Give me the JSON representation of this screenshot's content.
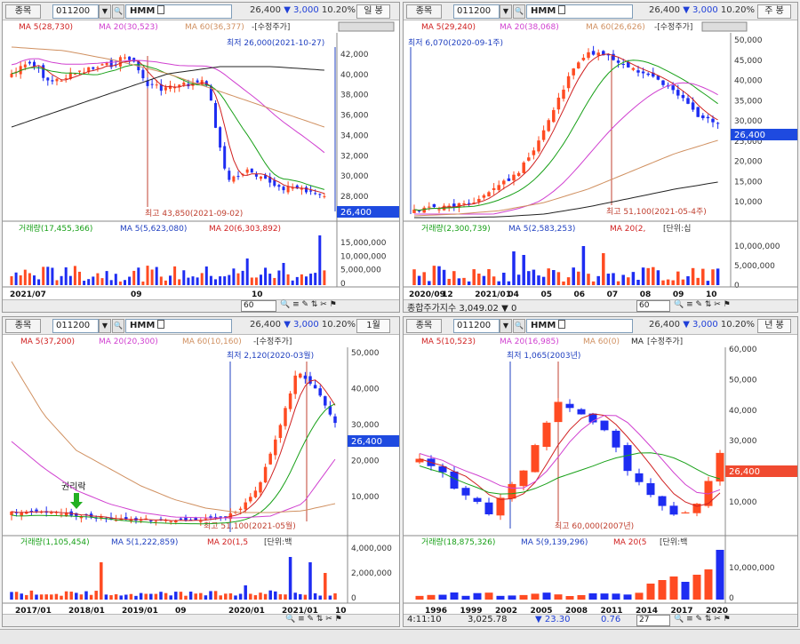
{
  "stock": {
    "code": "011200",
    "name": "HMM",
    "price": "26,400",
    "change": "▼ 3,000",
    "rate": "10.20%",
    "label": "종목"
  },
  "panels": [
    {
      "period": "일 봉",
      "legend": {
        "ma5": "MA 5(28,730)",
        "ma20": "MA 20(30,523)",
        "ma60": "MA 60(36,377)",
        "adj": "-[수정주가]"
      },
      "annot_low": "최저 26,000(2021-10-27)",
      "annot_high": "최고 43,850(2021-09-02)",
      "y_ticks": [
        "42,000",
        "40,000",
        "38,000",
        "36,000",
        "34,000",
        "32,000",
        "30,000",
        "28,000"
      ],
      "price_tag": "26,400",
      "vol_legend": {
        "vol": "거래량(17,455,366)",
        "ma5": "MA 5(5,623,080)",
        "ma20": "MA 20(6,303,892)"
      },
      "vol_ticks": [
        "15,000,000",
        "10,000,000",
        "5,000,000",
        "0"
      ],
      "x_labels": [
        "2021/07",
        "09",
        "10"
      ],
      "count": "60"
    },
    {
      "period": "주 봉",
      "legend": {
        "ma5": "MA 5(29,240)",
        "ma20": "MA 20(38,068)",
        "ma60": "MA 60(26,626)",
        "adj": "-[수정주가]"
      },
      "annot_low": "최저 6,070(2020-09-1주)",
      "annot_high": "최고 51,100(2021-05-4주)",
      "y_ticks": [
        "50,000",
        "45,000",
        "40,000",
        "35,000",
        "30,000",
        "25,000",
        "20,000",
        "15,000",
        "10,000"
      ],
      "price_tag": "26,400",
      "vol_legend": {
        "vol": "거래량(2,300,739)",
        "ma5": "MA 5(2,583,253)",
        "ma20": "MA 20(2,",
        "unit": "[단위:십"
      },
      "vol_ticks": [
        "10,000,000",
        "5,000,000",
        "0"
      ],
      "x_labels": [
        "2020/09",
        "12",
        "2021/01",
        "04",
        "05",
        "06",
        "07",
        "08",
        "09",
        "10"
      ],
      "count": "60",
      "index_line": "종합주가지수   3,049.02   ▼ 0"
    },
    {
      "period": "1월",
      "legend": {
        "ma5": "MA 5(37,200)",
        "ma20": "MA 20(20,300)",
        "ma60": "MA 60(10,160)",
        "adj": "-[수정주가]"
      },
      "annot_low": "최저 2,120(2020-03월)",
      "annot_high": "최고 51,100(2021-05월)",
      "ex_rights": "권리락",
      "y_ticks": [
        "50,000",
        "40,000",
        "30,000",
        "20,000",
        "10,000"
      ],
      "price_tag": "26,400",
      "vol_legend": {
        "vol": "거래량(1,105,454)",
        "ma5": "MA 5(1,222,859)",
        "ma20": "MA 20(1,5",
        "unit": "[단위:백"
      },
      "vol_ticks": [
        "4,000,000",
        "2,000,000",
        "0"
      ],
      "x_labels": [
        "2017/01",
        "2018/01",
        "2019/01",
        "09",
        "2020/01",
        "2021/01",
        "10"
      ],
      "count": "60"
    },
    {
      "period": "년 봉",
      "legend": {
        "ma5": "MA 5(10,523)",
        "ma20": "MA 20(16,985)",
        "ma60": "MA 60(0)",
        "ma": "MA",
        "adj": "[수정주가]"
      },
      "annot_low": "최저 1,065(2003년)",
      "annot_high": "최고 60,000(2007년)",
      "y_ticks": [
        "60,000",
        "50,000",
        "40,000",
        "30,000",
        "20,000",
        "10,000"
      ],
      "price_tag": "26,400",
      "vol_legend": {
        "vol": "거래량(18,875,326)",
        "ma5": "MA 5(9,139,296)",
        "ma20": "MA 20(5",
        "unit": "[단위:백"
      },
      "vol_ticks": [
        "10,000,000",
        "0"
      ],
      "x_labels": [
        "1996",
        "1999",
        "2002",
        "2005",
        "2008",
        "2011",
        "2014",
        "2017",
        "2020"
      ],
      "count": "27"
    }
  ],
  "status_bar": {
    "time": "4:11:10",
    "index": "3,025.78",
    "change": "▼ 23.30",
    "rate": "0.76"
  },
  "colors": {
    "up": "#ff4b22",
    "down": "#1e2df2",
    "ma5": "#d02020",
    "ma20": "#18a018",
    "ma60": "#d09060",
    "ma_long": "#222222",
    "ma_pink": "#d040d0"
  }
}
